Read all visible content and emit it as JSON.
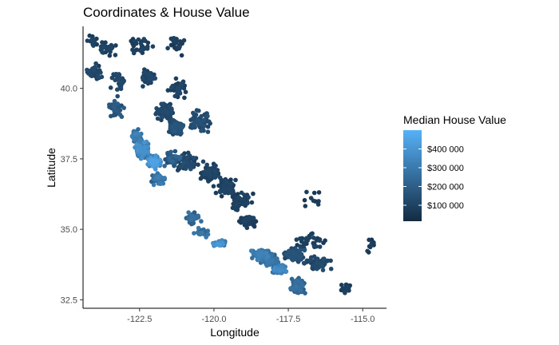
{
  "chart_data": {
    "type": "scatter",
    "title": "Coordinates & House Value",
    "xlabel": "Longitude",
    "ylabel": "Latitude",
    "xlim": [
      -124.4,
      -114.2
    ],
    "ylim": [
      32.2,
      42.2
    ],
    "x_ticks": [
      -122.5,
      -120.0,
      -117.5,
      -115.0
    ],
    "x_tick_labels": [
      "-122.5",
      "-120.0",
      "-117.5",
      "-115.0"
    ],
    "y_ticks": [
      32.5,
      35.0,
      37.5,
      40.0
    ],
    "y_tick_labels": [
      "32.5",
      "35.0",
      "37.5",
      "40.0"
    ],
    "grid": false,
    "color_scale": {
      "title": "Median House Value",
      "low_color": "#132B43",
      "high_color": "#56B1F7",
      "min": 15000,
      "max": 500000,
      "ticks": [
        100000,
        200000,
        300000,
        400000
      ],
      "tick_labels": [
        "$100 000",
        "$200 000",
        "$300 000",
        "$400 000"
      ],
      "placement": "right"
    },
    "regions": [
      {
        "lon": -124.1,
        "lat": 41.7,
        "spread": [
          0.25,
          0.25
        ],
        "n": 14,
        "value": 95000
      },
      {
        "lon": -123.6,
        "lat": 41.4,
        "spread": [
          0.45,
          0.35
        ],
        "n": 30,
        "value": 90000
      },
      {
        "lon": -122.4,
        "lat": 41.5,
        "spread": [
          0.5,
          0.4
        ],
        "n": 30,
        "value": 85000
      },
      {
        "lon": -121.3,
        "lat": 41.5,
        "spread": [
          0.45,
          0.45
        ],
        "n": 25,
        "value": 80000
      },
      {
        "lon": -124.0,
        "lat": 40.6,
        "spread": [
          0.3,
          0.35
        ],
        "n": 35,
        "value": 110000
      },
      {
        "lon": -123.2,
        "lat": 40.3,
        "spread": [
          0.45,
          0.45
        ],
        "n": 30,
        "value": 100000
      },
      {
        "lon": -122.2,
        "lat": 40.4,
        "spread": [
          0.35,
          0.4
        ],
        "n": 40,
        "value": 100000
      },
      {
        "lon": -121.2,
        "lat": 40.0,
        "spread": [
          0.4,
          0.45
        ],
        "n": 35,
        "value": 95000
      },
      {
        "lon": -123.3,
        "lat": 39.3,
        "spread": [
          0.35,
          0.5
        ],
        "n": 35,
        "value": 160000
      },
      {
        "lon": -121.7,
        "lat": 39.2,
        "spread": [
          0.45,
          0.45
        ],
        "n": 80,
        "value": 105000
      },
      {
        "lon": -121.3,
        "lat": 38.6,
        "spread": [
          0.35,
          0.35
        ],
        "n": 110,
        "value": 140000
      },
      {
        "lon": -120.5,
        "lat": 38.8,
        "spread": [
          0.5,
          0.5
        ],
        "n": 60,
        "value": 125000
      },
      {
        "lon": -122.4,
        "lat": 37.8,
        "spread": [
          0.3,
          0.35
        ],
        "n": 110,
        "value": 320000
      },
      {
        "lon": -122.6,
        "lat": 38.3,
        "spread": [
          0.3,
          0.3
        ],
        "n": 50,
        "value": 270000
      },
      {
        "lon": -122.0,
        "lat": 37.4,
        "spread": [
          0.3,
          0.3
        ],
        "n": 110,
        "value": 360000
      },
      {
        "lon": -121.9,
        "lat": 36.8,
        "spread": [
          0.3,
          0.3
        ],
        "n": 50,
        "value": 260000
      },
      {
        "lon": -121.4,
        "lat": 37.5,
        "spread": [
          0.35,
          0.4
        ],
        "n": 40,
        "value": 190000
      },
      {
        "lon": -120.9,
        "lat": 37.4,
        "spread": [
          0.5,
          0.4
        ],
        "n": 60,
        "value": 110000
      },
      {
        "lon": -120.1,
        "lat": 37.0,
        "spread": [
          0.5,
          0.45
        ],
        "n": 60,
        "value": 95000
      },
      {
        "lon": -119.6,
        "lat": 36.5,
        "spread": [
          0.45,
          0.4
        ],
        "n": 80,
        "value": 90000
      },
      {
        "lon": -119.1,
        "lat": 36.0,
        "spread": [
          0.5,
          0.4
        ],
        "n": 50,
        "value": 85000
      },
      {
        "lon": -120.7,
        "lat": 35.4,
        "spread": [
          0.35,
          0.35
        ],
        "n": 35,
        "value": 220000
      },
      {
        "lon": -120.4,
        "lat": 34.9,
        "spread": [
          0.3,
          0.25
        ],
        "n": 25,
        "value": 240000
      },
      {
        "lon": -119.8,
        "lat": 34.5,
        "spread": [
          0.35,
          0.15
        ],
        "n": 35,
        "value": 330000
      },
      {
        "lon": -118.9,
        "lat": 35.3,
        "spread": [
          0.4,
          0.35
        ],
        "n": 40,
        "value": 85000
      },
      {
        "lon": -118.4,
        "lat": 34.1,
        "spread": [
          0.4,
          0.25
        ],
        "n": 140,
        "value": 270000
      },
      {
        "lon": -118.1,
        "lat": 33.9,
        "spread": [
          0.35,
          0.25
        ],
        "n": 140,
        "value": 240000
      },
      {
        "lon": -117.8,
        "lat": 33.6,
        "spread": [
          0.3,
          0.25
        ],
        "n": 90,
        "value": 300000
      },
      {
        "lon": -117.2,
        "lat": 33.0,
        "spread": [
          0.3,
          0.35
        ],
        "n": 100,
        "value": 220000
      },
      {
        "lon": -117.3,
        "lat": 34.1,
        "spread": [
          0.5,
          0.3
        ],
        "n": 90,
        "value": 130000
      },
      {
        "lon": -116.5,
        "lat": 33.8,
        "spread": [
          0.5,
          0.35
        ],
        "n": 50,
        "value": 110000
      },
      {
        "lon": -116.8,
        "lat": 34.6,
        "spread": [
          0.7,
          0.35
        ],
        "n": 35,
        "value": 85000
      },
      {
        "lon": -115.6,
        "lat": 32.9,
        "spread": [
          0.3,
          0.2
        ],
        "n": 25,
        "value": 80000
      },
      {
        "lon": -116.6,
        "lat": 36.0,
        "spread": [
          0.6,
          0.6
        ],
        "n": 10,
        "value": 75000
      },
      {
        "lon": -114.7,
        "lat": 34.4,
        "spread": [
          0.2,
          0.5
        ],
        "n": 10,
        "value": 70000
      }
    ]
  }
}
